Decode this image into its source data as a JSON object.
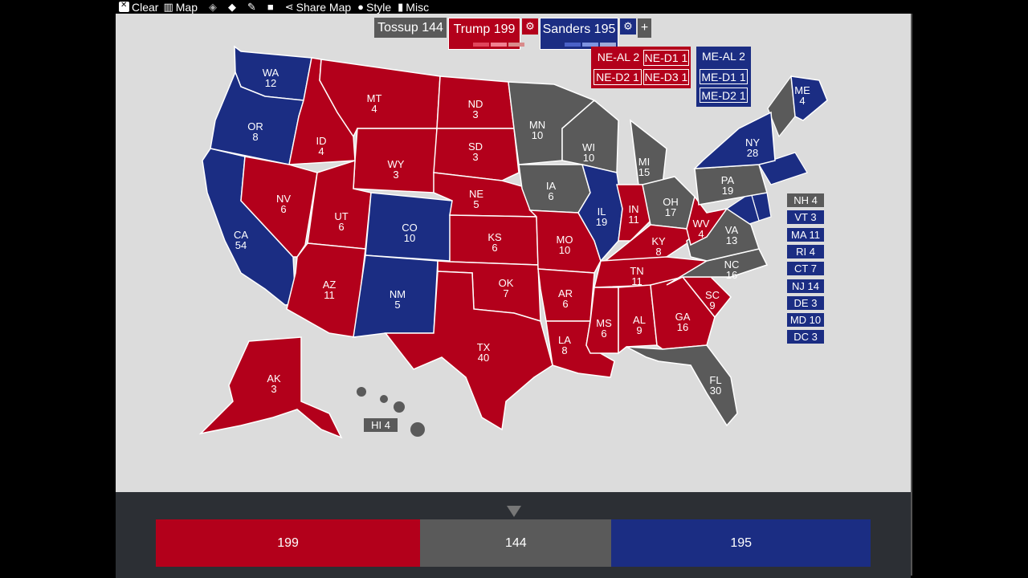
{
  "toolbar": {
    "clear": "Clear",
    "map": "Map",
    "share": "Share Map",
    "style": "Style",
    "misc": "Misc"
  },
  "header": {
    "tossup": "Tossup 144",
    "trump": "Trump 199",
    "sanders": "Sanders 195",
    "add": "+"
  },
  "colors": {
    "red": "#b3001b",
    "blue": "#1b2d83",
    "gray": "#5a5a5a",
    "map_bg": "#dcdcdc"
  },
  "districts": {
    "ne_al": "NE-AL 2",
    "ne_d1": "NE-D1 1",
    "ne_d2": "NE-D2 1",
    "ne_d3": "NE-D3 1",
    "me_al": "ME-AL 2",
    "me_d1": "ME-D1 1",
    "me_d2": "ME-D2 1"
  },
  "small_states": [
    {
      "label": "NH 4",
      "party": "gray"
    },
    {
      "label": "VT 3",
      "party": "blue"
    },
    {
      "label": "MA 11",
      "party": "blue"
    },
    {
      "label": "RI 4",
      "party": "blue"
    },
    {
      "label": "CT 7",
      "party": "blue"
    },
    {
      "label": "NJ 14",
      "party": "blue"
    },
    {
      "label": "DE 3",
      "party": "blue"
    },
    {
      "label": "MD 10",
      "party": "blue"
    },
    {
      "label": "DC 3",
      "party": "blue"
    }
  ],
  "hi": "HI 4",
  "states": [
    {
      "abbr": "WA",
      "ev": "12",
      "party": "blue"
    },
    {
      "abbr": "OR",
      "ev": "8",
      "party": "blue"
    },
    {
      "abbr": "CA",
      "ev": "54",
      "party": "blue"
    },
    {
      "abbr": "ID",
      "ev": "4",
      "party": "red"
    },
    {
      "abbr": "NV",
      "ev": "6",
      "party": "red"
    },
    {
      "abbr": "MT",
      "ev": "4",
      "party": "red"
    },
    {
      "abbr": "WY",
      "ev": "3",
      "party": "red"
    },
    {
      "abbr": "UT",
      "ev": "6",
      "party": "red"
    },
    {
      "abbr": "AZ",
      "ev": "11",
      "party": "red"
    },
    {
      "abbr": "CO",
      "ev": "10",
      "party": "blue"
    },
    {
      "abbr": "NM",
      "ev": "5",
      "party": "blue"
    },
    {
      "abbr": "ND",
      "ev": "3",
      "party": "red"
    },
    {
      "abbr": "SD",
      "ev": "3",
      "party": "red"
    },
    {
      "abbr": "NE",
      "ev": "5",
      "party": "red"
    },
    {
      "abbr": "KS",
      "ev": "6",
      "party": "red"
    },
    {
      "abbr": "OK",
      "ev": "7",
      "party": "red"
    },
    {
      "abbr": "TX",
      "ev": "40",
      "party": "red"
    },
    {
      "abbr": "MN",
      "ev": "10",
      "party": "gray"
    },
    {
      "abbr": "IA",
      "ev": "6",
      "party": "gray"
    },
    {
      "abbr": "MO",
      "ev": "10",
      "party": "red"
    },
    {
      "abbr": "AR",
      "ev": "6",
      "party": "red"
    },
    {
      "abbr": "LA",
      "ev": "8",
      "party": "red"
    },
    {
      "abbr": "WI",
      "ev": "10",
      "party": "gray"
    },
    {
      "abbr": "IL",
      "ev": "19",
      "party": "blue"
    },
    {
      "abbr": "MI",
      "ev": "15",
      "party": "gray"
    },
    {
      "abbr": "IN",
      "ev": "11",
      "party": "red"
    },
    {
      "abbr": "OH",
      "ev": "17",
      "party": "gray"
    },
    {
      "abbr": "KY",
      "ev": "8",
      "party": "red"
    },
    {
      "abbr": "TN",
      "ev": "11",
      "party": "red"
    },
    {
      "abbr": "MS",
      "ev": "6",
      "party": "red"
    },
    {
      "abbr": "AL",
      "ev": "9",
      "party": "red"
    },
    {
      "abbr": "GA",
      "ev": "16",
      "party": "red"
    },
    {
      "abbr": "FL",
      "ev": "30",
      "party": "gray"
    },
    {
      "abbr": "SC",
      "ev": "9",
      "party": "red"
    },
    {
      "abbr": "NC",
      "ev": "16",
      "party": "gray"
    },
    {
      "abbr": "VA",
      "ev": "13",
      "party": "gray"
    },
    {
      "abbr": "WV",
      "ev": "4",
      "party": "red"
    },
    {
      "abbr": "PA",
      "ev": "19",
      "party": "gray"
    },
    {
      "abbr": "NY",
      "ev": "28",
      "party": "blue"
    },
    {
      "abbr": "ME",
      "ev": "4",
      "party": "blue"
    },
    {
      "abbr": "AK",
      "ev": "3",
      "party": "red"
    }
  ],
  "totals": {
    "trump": 199,
    "tossup": 144,
    "sanders": 195,
    "trump_label": "199",
    "tossup_label": "144",
    "sanders_label": "195"
  }
}
